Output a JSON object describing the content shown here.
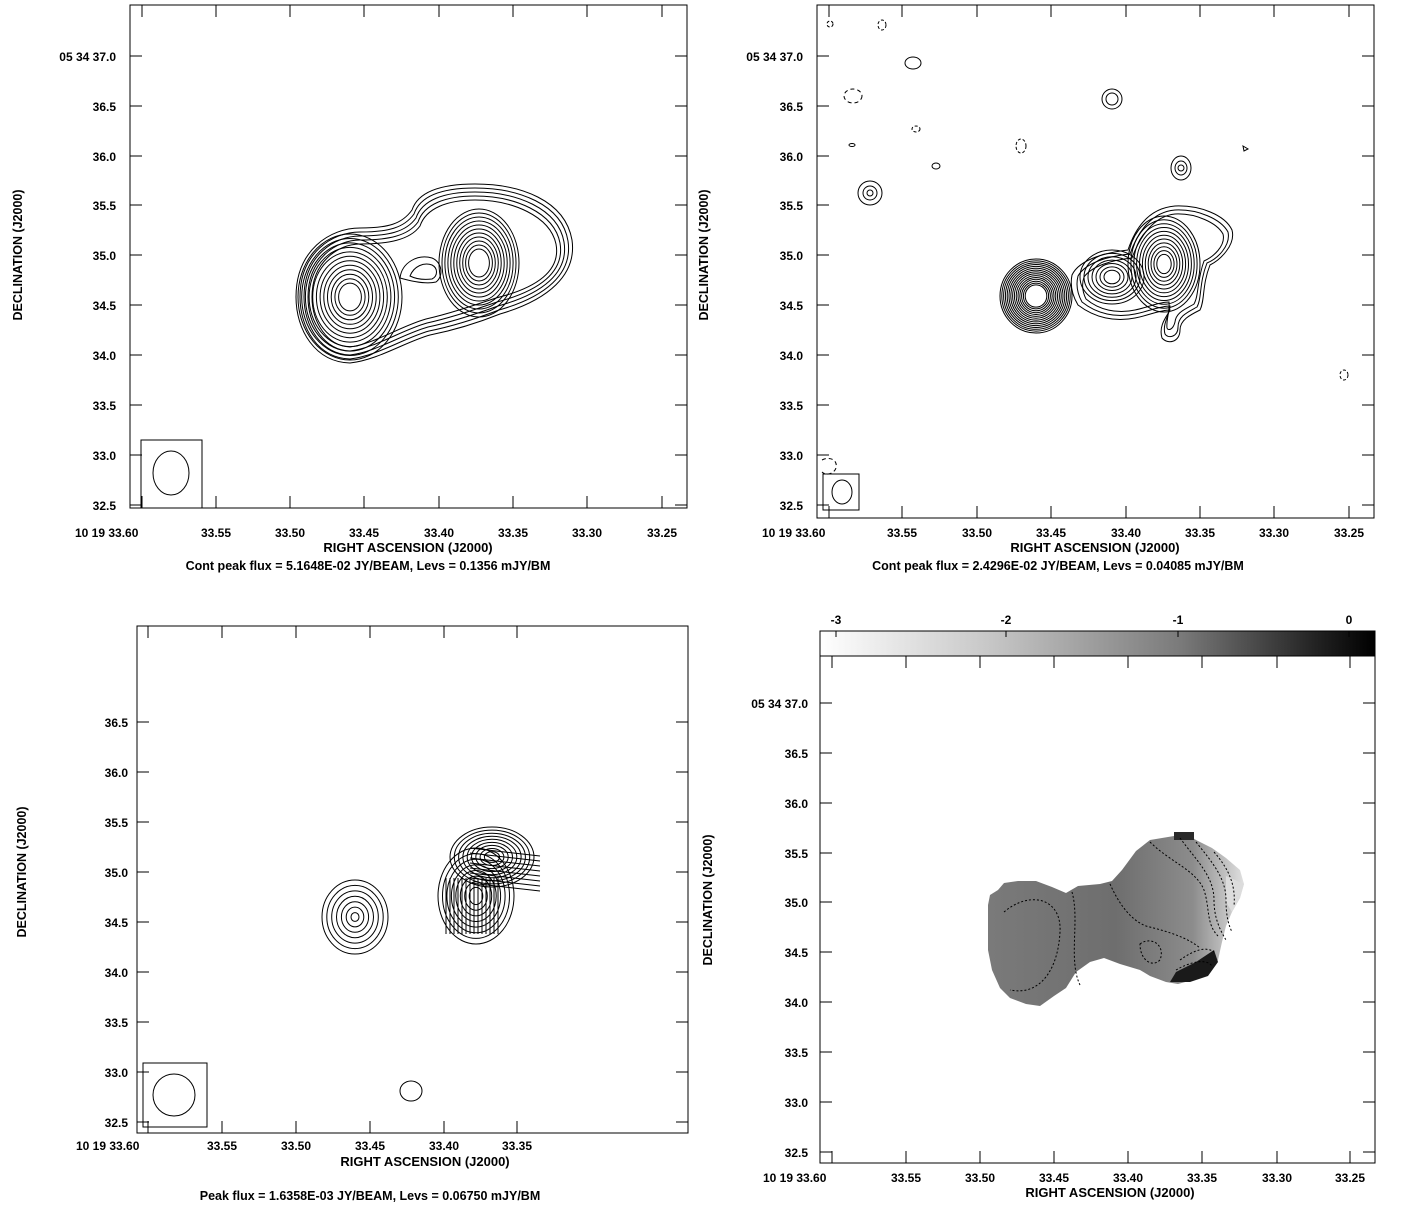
{
  "panels": [
    {
      "id": "p1",
      "ylabel": "DECLINATION (J2000)",
      "xlabel": "RIGHT ASCENSION (J2000)",
      "caption": "Cont peak flux =  5.1648E-02 JY/BEAM, Levs = 0.1356 mJY/BM",
      "x_first_label": "10 19 33.60",
      "x_tick_labels": [
        "33.55",
        "33.50",
        "33.45",
        "33.40",
        "33.35",
        "33.30",
        "33.25"
      ],
      "y_tick_labels": [
        "05 34 37.0",
        "36.5",
        "36.0",
        "35.5",
        "35.0",
        "34.5",
        "34.0",
        "33.5",
        "33.0",
        "32.5"
      ]
    },
    {
      "id": "p2",
      "ylabel": "DECLINATION (J2000)",
      "xlabel": "RIGHT ASCENSION (J2000)",
      "caption": "Cont peak flux =  2.4296E-02 JY/BEAM, Levs = 0.04085 mJY/BM",
      "x_first_label": "10 19 33.60",
      "x_tick_labels": [
        "33.55",
        "33.50",
        "33.45",
        "33.40",
        "33.35",
        "33.30",
        "33.25"
      ],
      "y_tick_labels": [
        "05 34 37.0",
        "36.5",
        "36.0",
        "35.5",
        "35.0",
        "34.5",
        "34.0",
        "33.5",
        "33.0",
        "32.5"
      ]
    },
    {
      "id": "p3",
      "ylabel": "DECLINATION (J2000)",
      "xlabel": "RIGHT ASCENSION (J2000)",
      "caption": "Peak flux =  1.6358E-03 JY/BEAM, Levs = 0.06750 mJY/BM",
      "x_first_label": "10 19 33.60",
      "x_tick_labels": [
        "33.55",
        "33.50",
        "33.45",
        "33.40",
        "33.35"
      ],
      "y_tick_labels": [
        "36.5",
        "36.0",
        "35.5",
        "35.0",
        "34.5",
        "34.0",
        "33.5",
        "33.0",
        "32.5"
      ]
    },
    {
      "id": "p4",
      "ylabel": "DECLINATION (J2000)",
      "xlabel": "RIGHT ASCENSION (J2000)",
      "caption": "",
      "x_first_label": "10 19 33.60",
      "x_tick_labels": [
        "33.55",
        "33.50",
        "33.45",
        "33.40",
        "33.35",
        "33.30",
        "33.25"
      ],
      "y_tick_labels": [
        "05 34 37.0",
        "36.5",
        "36.0",
        "35.5",
        "35.0",
        "34.5",
        "34.0",
        "33.5",
        "33.0",
        "32.5"
      ],
      "colorbar_labels": [
        "-3",
        "-2",
        "-1",
        "0"
      ]
    }
  ],
  "chart_data": [
    {
      "type": "contour",
      "xlabel": "RIGHT ASCENSION (J2000)",
      "ylabel": "DECLINATION (J2000)",
      "xlim": [
        33.62,
        33.245
      ],
      "ylim": [
        32.45,
        37.55
      ],
      "components": [
        {
          "ra": 33.47,
          "dec": 34.6,
          "rx": 0.048,
          "ry": 0.64,
          "levels": 15
        },
        {
          "ra": 33.38,
          "dec": 34.93,
          "rx": 0.06,
          "ry": 0.76,
          "levels": 15
        }
      ],
      "beam": {
        "ra": 33.58,
        "dec": 32.82
      }
    },
    {
      "type": "contour",
      "xlabel": "RIGHT ASCENSION (J2000)",
      "ylabel": "DECLINATION (J2000)",
      "xlim": [
        33.62,
        33.245
      ],
      "ylim": [
        32.45,
        37.55
      ],
      "components": [
        {
          "ra": 33.47,
          "dec": 34.6,
          "rx": 0.033,
          "ry": 0.38,
          "levels": 14
        },
        {
          "ra": 33.42,
          "dec": 34.76,
          "rx": 0.022,
          "ry": 0.3,
          "levels": 7
        },
        {
          "ra": 33.38,
          "dec": 34.9,
          "rx": 0.035,
          "ry": 0.5,
          "levels": 12
        }
      ],
      "beam": {
        "ra": 33.59,
        "dec": 32.65
      }
    },
    {
      "type": "contour",
      "xlabel": "RIGHT ASCENSION (J2000)",
      "ylabel": "DECLINATION (J2000)",
      "xlim": [
        33.62,
        33.23
      ],
      "ylim": [
        32.45,
        37.02
      ],
      "components": [
        {
          "ra": 33.47,
          "dec": 34.55,
          "rx": 0.024,
          "ry": 0.34,
          "levels": 7
        },
        {
          "ra": 33.38,
          "dec": 34.95,
          "rx": 0.035,
          "ry": 0.62,
          "levels": 12
        }
      ],
      "beam": {
        "ra": 33.58,
        "dec": 32.78
      }
    },
    {
      "type": "heatmap",
      "xlabel": "RIGHT ASCENSION (J2000)",
      "ylabel": "DECLINATION (J2000)",
      "xlim": [
        33.62,
        33.245
      ],
      "ylim": [
        32.45,
        37.3
      ],
      "colorbar_range": [
        -3.4,
        0.2
      ],
      "colorbar_ticks": [
        -3,
        -2,
        -1,
        0
      ],
      "map_value_range": [
        -1.6,
        -0.5
      ]
    }
  ]
}
